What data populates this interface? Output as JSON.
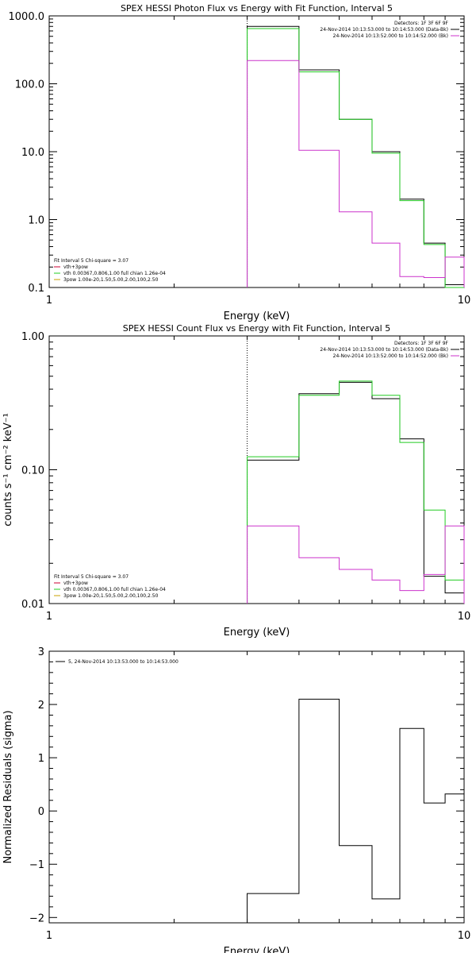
{
  "chart_data": [
    {
      "type": "line",
      "title": "SPEX HESSI Photon Flux vs Energy with Fit Function, Interval 5",
      "xlabel": "Energy (keV)",
      "ylabel": "",
      "xscale": "log",
      "yscale": "log",
      "xlim": [
        1,
        10
      ],
      "ylim": [
        0.1,
        1000
      ],
      "x_ticks": [
        "1",
        "10"
      ],
      "y_ticks": [
        "0.1",
        "1.0",
        "10.0",
        "100.0",
        "1000.0"
      ],
      "y_tick_values": [
        0.1,
        1,
        10,
        100,
        1000
      ],
      "bin_edges": [
        3,
        4,
        5,
        6,
        7,
        8,
        9,
        10
      ],
      "vertical_marker_x": 3,
      "legend_topright": [
        {
          "text": "Detectors: 1F 3F 6F 9F",
          "color": "#000000"
        },
        {
          "text": "24-Nov-2014 10:13:53.000 to 10:14:53.000 (Data-Bk)",
          "color": "#000000"
        },
        {
          "text": "24-Nov-2014 10:13:52.000 to 10:14:52.000 (Bk)",
          "color": "#cc33cc"
        }
      ],
      "legend_bottomleft": [
        {
          "text": "Fit Interval 5   Chi-square = 3.07",
          "color": "#000000"
        },
        {
          "text": "vth+3pow",
          "color": "#cc0033"
        },
        {
          "text": "vth 0.00367,0.806,1.00  full chian 1.26e-04",
          "color": "#22cc22"
        },
        {
          "text": "3pow 1.00e-20,1.50,5.00,2.00,100,2.50",
          "color": "#c8a000"
        }
      ],
      "series": [
        {
          "color": "#000000",
          "values": [
            700,
            160,
            30,
            10,
            2.0,
            0.45,
            0.11
          ]
        },
        {
          "color": "#22cc22",
          "values": [
            650,
            150,
            30,
            9.5,
            1.9,
            0.43,
            0.1
          ]
        },
        {
          "color": "#cc33cc",
          "values": [
            220,
            10.5,
            1.3,
            0.45,
            0.145,
            0.14,
            0.28
          ]
        }
      ]
    },
    {
      "type": "line",
      "title": "SPEX HESSI Count Flux vs Energy with Fit Function, Interval 5",
      "xlabel": "Energy (keV)",
      "ylabel": "counts s⁻¹ cm⁻² keV⁻¹",
      "xscale": "log",
      "yscale": "log",
      "xlim": [
        1,
        10
      ],
      "ylim": [
        0.01,
        1.0
      ],
      "x_ticks": [
        "1",
        "10"
      ],
      "y_ticks": [
        "0.01",
        "0.10",
        "1.00"
      ],
      "y_tick_values": [
        0.01,
        0.1,
        1.0
      ],
      "bin_edges": [
        3,
        4,
        5,
        6,
        7,
        8,
        9,
        10
      ],
      "vertical_marker_x": 3,
      "legend_topright": [
        {
          "text": "Detectors: 1F 3F 6F 9F",
          "color": "#000000"
        },
        {
          "text": "24-Nov-2014 10:13:53.000 to 10:14:53.000 (Data-Bk)",
          "color": "#000000"
        },
        {
          "text": "24-Nov-2014 10:13:52.000 to 10:14:52.000 (Bk)",
          "color": "#cc33cc"
        }
      ],
      "legend_bottomleft": [
        {
          "text": "Fit Interval 5   Chi-square = 3.07",
          "color": "#000000"
        },
        {
          "text": "vth+3pow",
          "color": "#cc0033"
        },
        {
          "text": "vth 0.00367,0.806,1.00  full chian 1.26e-04",
          "color": "#22cc22"
        },
        {
          "text": "3pow 1.00e-20,1.50,5.00,2.00,100,2.50",
          "color": "#c8a000"
        }
      ],
      "series": [
        {
          "color": "#000000",
          "values": [
            0.118,
            0.37,
            0.45,
            0.34,
            0.17,
            0.016,
            0.012
          ]
        },
        {
          "color": "#22cc22",
          "values": [
            0.125,
            0.36,
            0.46,
            0.36,
            0.16,
            0.05,
            0.015
          ]
        },
        {
          "color": "#cc33cc",
          "values": [
            0.038,
            0.022,
            0.018,
            0.015,
            0.0125,
            0.0165,
            0.038
          ]
        }
      ]
    },
    {
      "type": "line",
      "title": "",
      "xlabel": "Energy (keV)",
      "ylabel": "Normalized Residuals (sigma)",
      "xscale": "log",
      "yscale": "linear",
      "xlim": [
        1,
        10
      ],
      "ylim": [
        -2.1,
        3.0
      ],
      "x_ticks": [
        "1",
        "10"
      ],
      "y_ticks": [
        "−2",
        "−1",
        "0",
        "1",
        "2",
        "3"
      ],
      "y_tick_values": [
        -2,
        -1,
        0,
        1,
        2,
        3
      ],
      "bin_edges": [
        3,
        4,
        5,
        6,
        7,
        8,
        9,
        10
      ],
      "legend_topleft": [
        {
          "text": "5, 24-Nov-2014 10:13:53.000 to 10:14:53.000",
          "color": "#000000"
        }
      ],
      "series": [
        {
          "color": "#000000",
          "values": [
            -1.55,
            2.1,
            -0.65,
            -1.65,
            1.55,
            0.15,
            0.32
          ]
        }
      ]
    }
  ]
}
